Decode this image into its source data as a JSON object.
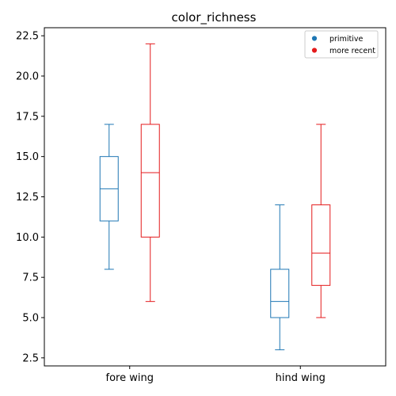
{
  "chart_data": {
    "type": "box",
    "title": "color_richness",
    "xlabel": "",
    "ylabel": "",
    "categories": [
      "fore wing",
      "hind wing"
    ],
    "ylim": [
      2.0,
      23.0
    ],
    "yticks": [
      2.5,
      5.0,
      7.5,
      10.0,
      12.5,
      15.0,
      17.5,
      20.0,
      22.5
    ],
    "ytick_labels": [
      "2.5",
      "5.0",
      "7.5",
      "10.0",
      "12.5",
      "15.0",
      "17.5",
      "20.0",
      "22.5"
    ],
    "grid": false,
    "legend_position": "top-right",
    "series": [
      {
        "name": "primitive",
        "color": "#1f77b4",
        "boxes": [
          {
            "whisker_low": 8,
            "q1": 11,
            "median": 13,
            "q3": 15,
            "whisker_high": 17
          },
          {
            "whisker_low": 3,
            "q1": 5,
            "median": 6,
            "q3": 8,
            "whisker_high": 12
          }
        ]
      },
      {
        "name": "more recent",
        "color": "#e41a1c",
        "boxes": [
          {
            "whisker_low": 6,
            "q1": 10,
            "median": 14,
            "q3": 17,
            "whisker_high": 22
          },
          {
            "whisker_low": 5,
            "q1": 7,
            "median": 9,
            "q3": 12,
            "whisker_high": 17
          }
        ]
      }
    ]
  }
}
